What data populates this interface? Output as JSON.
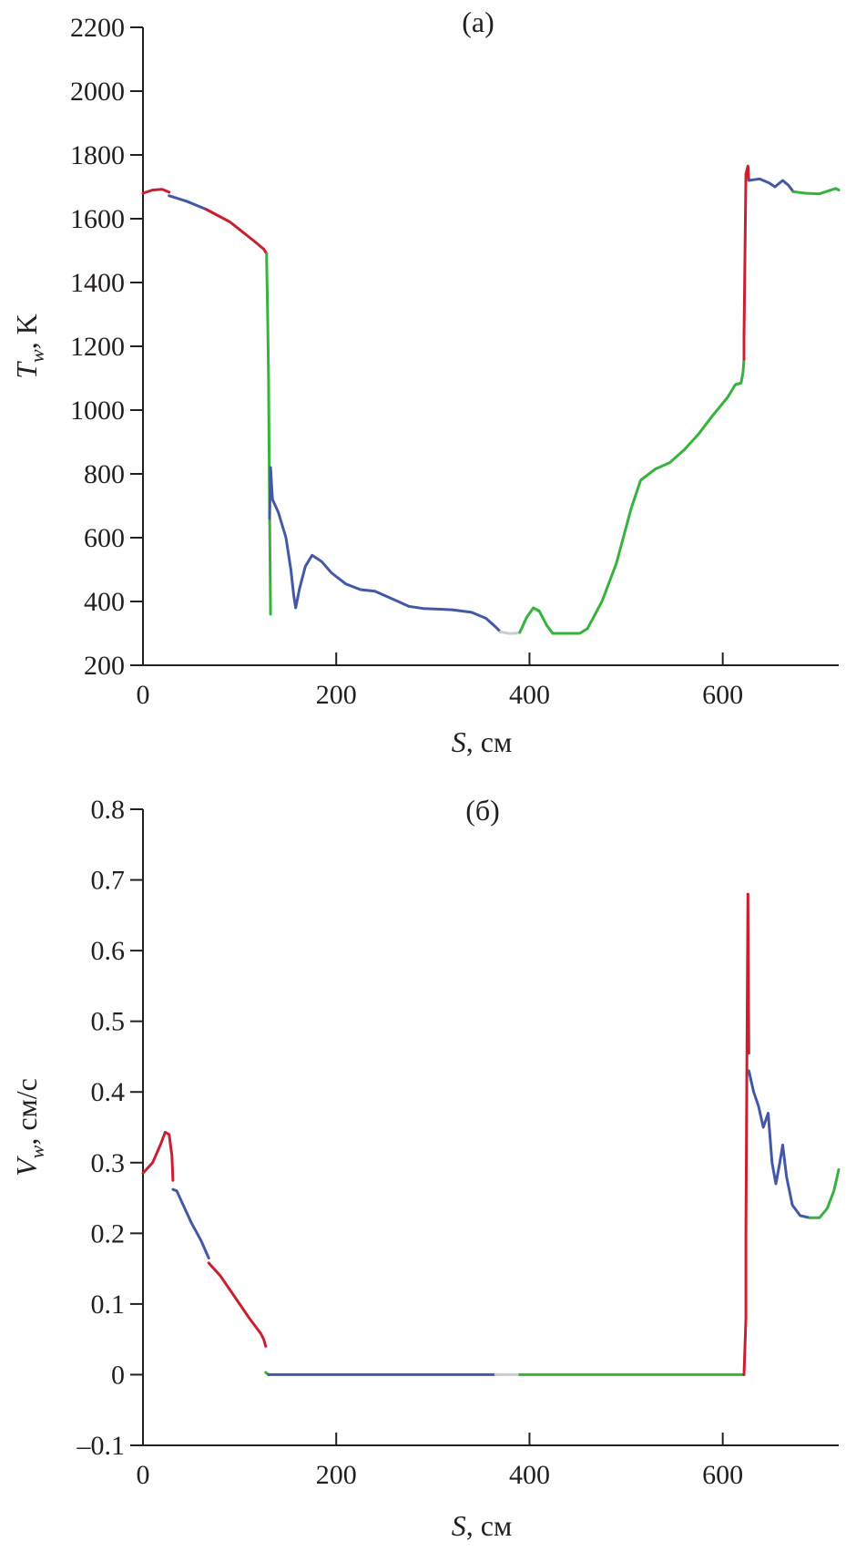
{
  "chart_data": [
    {
      "type": "line",
      "panel_label": "(a)",
      "xlabel_main": "S",
      "xlabel_unit": ", см",
      "ylabel_main": "T",
      "ylabel_sub": "w",
      "ylabel_unit": ", K",
      "xlim": [
        0,
        720
      ],
      "ylim": [
        200,
        2200
      ],
      "xticks": [
        0,
        200,
        400,
        600
      ],
      "yticks": [
        200,
        400,
        600,
        800,
        1000,
        1200,
        1400,
        1600,
        1800,
        2000,
        2200
      ],
      "series": [
        {
          "color": "#c8202f",
          "points": [
            [
              0,
              1680
            ],
            [
              10,
              1690
            ],
            [
              20,
              1692
            ],
            [
              27,
              1683
            ]
          ]
        },
        {
          "color": "#4458a8",
          "points": [
            [
              27,
              1672
            ],
            [
              45,
              1655
            ],
            [
              65,
              1630
            ]
          ]
        },
        {
          "color": "#c8202f",
          "points": [
            [
              65,
              1630
            ],
            [
              90,
              1590
            ],
            [
              115,
              1530
            ],
            [
              125,
              1505
            ],
            [
              128,
              1490
            ]
          ]
        },
        {
          "color": "#36b33c",
          "points": [
            [
              128,
              1490
            ],
            [
              128,
              1470
            ],
            [
              129,
              1300
            ],
            [
              130,
              1100
            ],
            [
              131,
              700
            ],
            [
              132,
              360
            ]
          ]
        },
        {
          "color": "#4458a8",
          "points": [
            [
              131,
              660
            ],
            [
              132,
              820
            ],
            [
              134,
              720
            ],
            [
              140,
              680
            ],
            [
              148,
              600
            ],
            [
              153,
              500
            ],
            [
              156,
              420
            ],
            [
              158,
              380
            ],
            [
              162,
              440
            ],
            [
              168,
              510
            ],
            [
              175,
              545
            ],
            [
              185,
              525
            ],
            [
              195,
              490
            ],
            [
              210,
              455
            ],
            [
              225,
              437
            ],
            [
              240,
              432
            ],
            [
              255,
              412
            ],
            [
              275,
              385
            ],
            [
              290,
              378
            ],
            [
              305,
              376
            ],
            [
              320,
              374
            ],
            [
              340,
              366
            ],
            [
              355,
              347
            ],
            [
              365,
              320
            ],
            [
              370,
              305
            ]
          ]
        },
        {
          "color": "#cccccc",
          "points": [
            [
              370,
              305
            ],
            [
              378,
              300
            ],
            [
              385,
              300
            ],
            [
              390,
              303
            ]
          ]
        },
        {
          "color": "#36b33c",
          "points": [
            [
              390,
              303
            ],
            [
              397,
              350
            ],
            [
              404,
              380
            ],
            [
              410,
              370
            ],
            [
              418,
              325
            ],
            [
              424,
              300
            ],
            [
              440,
              300
            ],
            [
              452,
              300
            ],
            [
              460,
              315
            ],
            [
              475,
              400
            ],
            [
              490,
              520
            ],
            [
              505,
              690
            ],
            [
              515,
              780
            ],
            [
              530,
              815
            ],
            [
              545,
              835
            ],
            [
              560,
              875
            ],
            [
              575,
              925
            ],
            [
              590,
              985
            ],
            [
              605,
              1040
            ],
            [
              613,
              1080
            ],
            [
              619,
              1085
            ],
            [
              621,
              1120
            ],
            [
              622,
              1160
            ]
          ]
        },
        {
          "color": "#c8202f",
          "points": [
            [
              622,
              1160
            ],
            [
              622,
              1230
            ],
            [
              623,
              1500
            ],
            [
              624,
              1740
            ],
            [
              626,
              1765
            ],
            [
              627,
              1720
            ]
          ]
        },
        {
          "color": "#4458a8",
          "points": [
            [
              627,
              1720
            ],
            [
              638,
              1725
            ],
            [
              648,
              1712
            ],
            [
              654,
              1700
            ],
            [
              662,
              1720
            ],
            [
              668,
              1705
            ],
            [
              673,
              1685
            ]
          ]
        },
        {
          "color": "#36b33c",
          "points": [
            [
              673,
              1685
            ],
            [
              685,
              1680
            ],
            [
              700,
              1678
            ],
            [
              710,
              1688
            ],
            [
              717,
              1695
            ],
            [
              720,
              1690
            ]
          ]
        }
      ]
    },
    {
      "type": "line",
      "panel_label": "(б)",
      "xlabel_main": "S",
      "xlabel_unit": ", см",
      "ylabel_main": "V",
      "ylabel_sub": "w",
      "ylabel_unit": ", см/с",
      "xlim": [
        0,
        720
      ],
      "ylim": [
        -0.1,
        0.8
      ],
      "xticks": [
        0,
        200,
        400,
        600
      ],
      "yticks": [
        -0.1,
        0,
        0.1,
        0.2,
        0.3,
        0.4,
        0.5,
        0.6,
        0.7,
        0.8
      ],
      "ytick_labels": [
        "–0.1",
        "0",
        "0.1",
        "0.2",
        "0.3",
        "0.4",
        "0.5",
        "0.6",
        "0.7",
        "0.8"
      ],
      "series": [
        {
          "color": "#c8202f",
          "points": [
            [
              0,
              0.285
            ],
            [
              10,
              0.3
            ],
            [
              18,
              0.325
            ],
            [
              23,
              0.343
            ],
            [
              27,
              0.34
            ],
            [
              30,
              0.31
            ],
            [
              31,
              0.275
            ]
          ]
        },
        {
          "color": "#4458a8",
          "points": [
            [
              31,
              0.262
            ],
            [
              35,
              0.26
            ],
            [
              40,
              0.245
            ],
            [
              50,
              0.215
            ],
            [
              60,
              0.19
            ],
            [
              68,
              0.165
            ]
          ]
        },
        {
          "color": "#c8202f",
          "points": [
            [
              68,
              0.158
            ],
            [
              80,
              0.14
            ],
            [
              95,
              0.11
            ],
            [
              110,
              0.08
            ],
            [
              122,
              0.058
            ],
            [
              125,
              0.05
            ],
            [
              127,
              0.04
            ]
          ]
        },
        {
          "color": "#36b33c",
          "points": [
            [
              127,
              0.003
            ],
            [
              130,
              0.0
            ]
          ]
        },
        {
          "color": "#4458a8",
          "points": [
            [
              130,
              0.0
            ],
            [
              365,
              0.0
            ]
          ]
        },
        {
          "color": "#cccccc",
          "points": [
            [
              365,
              0.0
            ],
            [
              390,
              0.0
            ]
          ]
        },
        {
          "color": "#36b33c",
          "points": [
            [
              390,
              0.0
            ],
            [
              622,
              0.0
            ]
          ]
        },
        {
          "color": "#c8202f",
          "points": [
            [
              622,
              0.0
            ],
            [
              624,
              0.08
            ],
            [
              624,
              0.2
            ],
            [
              625,
              0.45
            ],
            [
              626,
              0.68
            ],
            [
              627,
              0.455
            ]
          ]
        },
        {
          "color": "#4458a8",
          "points": [
            [
              627,
              0.43
            ],
            [
              632,
              0.4
            ],
            [
              637,
              0.38
            ],
            [
              642,
              0.35
            ],
            [
              647,
              0.37
            ],
            [
              651,
              0.3
            ],
            [
              655,
              0.27
            ],
            [
              659,
              0.3
            ],
            [
              662,
              0.325
            ],
            [
              666,
              0.28
            ],
            [
              672,
              0.24
            ],
            [
              680,
              0.225
            ],
            [
              690,
              0.222
            ]
          ]
        },
        {
          "color": "#36b33c",
          "points": [
            [
              690,
              0.222
            ],
            [
              700,
              0.222
            ],
            [
              708,
              0.235
            ],
            [
              715,
              0.26
            ],
            [
              720,
              0.29
            ]
          ]
        }
      ]
    }
  ]
}
